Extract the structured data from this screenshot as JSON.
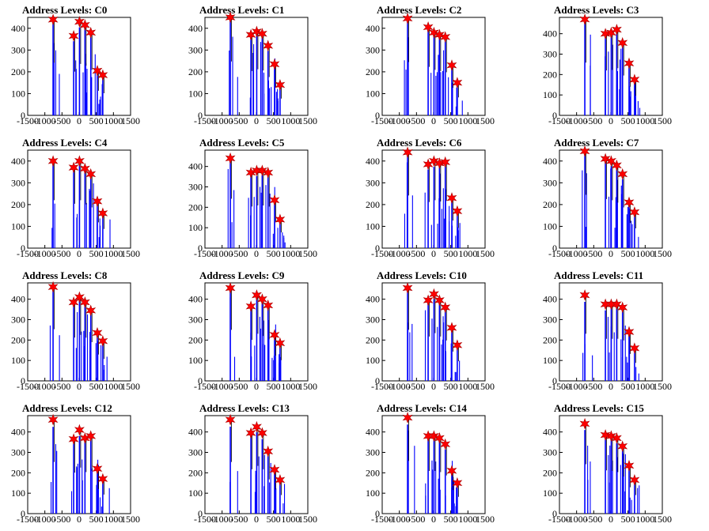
{
  "chart_data": [
    {
      "type": "bar",
      "title": "Address Levels: C0",
      "xlim": [
        -1500,
        1500
      ],
      "ylim": [
        0,
        450
      ],
      "x_ticks": [
        -1500,
        -1000,
        -500,
        0,
        500,
        1000,
        1500
      ],
      "y_ticks": [
        0,
        100,
        200,
        300,
        400
      ],
      "peaks": [
        {
          "x": -760,
          "y": 440
        },
        {
          "x": -160,
          "y": 365
        },
        {
          "x": 10,
          "y": 430
        },
        {
          "x": 170,
          "y": 415
        },
        {
          "x": 340,
          "y": 380
        },
        {
          "x": 530,
          "y": 205
        },
        {
          "x": 690,
          "y": 185
        }
      ]
    },
    {
      "type": "bar",
      "title": "Address Levels: C1",
      "xlim": [
        -1500,
        1500
      ],
      "ylim": [
        0,
        450
      ],
      "x_ticks": [
        -1500,
        -1000,
        -500,
        0,
        500,
        1000,
        1500
      ],
      "y_ticks": [
        0,
        100,
        200,
        300,
        400
      ],
      "peaks": [
        {
          "x": -760,
          "y": 450
        },
        {
          "x": -160,
          "y": 370
        },
        {
          "x": 10,
          "y": 385
        },
        {
          "x": 170,
          "y": 375
        },
        {
          "x": 340,
          "y": 320
        },
        {
          "x": 530,
          "y": 235
        },
        {
          "x": 690,
          "y": 140
        }
      ]
    },
    {
      "type": "bar",
      "title": "Address Levels: C2",
      "xlim": [
        -1500,
        1500
      ],
      "ylim": [
        0,
        450
      ],
      "x_ticks": [
        -1500,
        -1000,
        -500,
        0,
        500,
        1000,
        1500
      ],
      "y_ticks": [
        0,
        100,
        200,
        300,
        400
      ],
      "peaks": [
        {
          "x": -760,
          "y": 445
        },
        {
          "x": -160,
          "y": 405
        },
        {
          "x": 10,
          "y": 380
        },
        {
          "x": 170,
          "y": 370
        },
        {
          "x": 340,
          "y": 360
        },
        {
          "x": 530,
          "y": 230
        },
        {
          "x": 690,
          "y": 150
        }
      ]
    },
    {
      "type": "bar",
      "title": "Address Levels: C3",
      "xlim": [
        -1500,
        1500
      ],
      "ylim": [
        0,
        480
      ],
      "x_ticks": [
        -1500,
        -1000,
        -500,
        0,
        500,
        1000,
        1500
      ],
      "y_ticks": [
        0,
        100,
        200,
        300,
        400
      ],
      "peaks": [
        {
          "x": -760,
          "y": 470
        },
        {
          "x": -160,
          "y": 400
        },
        {
          "x": 10,
          "y": 405
        },
        {
          "x": 170,
          "y": 420
        },
        {
          "x": 340,
          "y": 355
        },
        {
          "x": 530,
          "y": 255
        },
        {
          "x": 690,
          "y": 175
        }
      ]
    },
    {
      "type": "bar",
      "title": "Address Levels: C4",
      "xlim": [
        -1500,
        1500
      ],
      "ylim": [
        0,
        450
      ],
      "x_ticks": [
        -1500,
        -1000,
        -500,
        0,
        500,
        1000,
        1500
      ],
      "y_ticks": [
        0,
        100,
        200,
        300,
        400
      ],
      "peaks": [
        {
          "x": -760,
          "y": 400
        },
        {
          "x": -160,
          "y": 370
        },
        {
          "x": 10,
          "y": 400
        },
        {
          "x": 170,
          "y": 365
        },
        {
          "x": 340,
          "y": 340
        },
        {
          "x": 530,
          "y": 215
        },
        {
          "x": 690,
          "y": 160
        }
      ]
    },
    {
      "type": "bar",
      "title": "Address Levels: C5",
      "xlim": [
        -1500,
        1500
      ],
      "ylim": [
        0,
        480
      ],
      "x_ticks": [
        -1500,
        -1000,
        -500,
        0,
        500,
        1000,
        1500
      ],
      "y_ticks": [
        0,
        100,
        200,
        300,
        400
      ],
      "peaks": [
        {
          "x": -760,
          "y": 440
        },
        {
          "x": -160,
          "y": 370
        },
        {
          "x": 10,
          "y": 380
        },
        {
          "x": 170,
          "y": 380
        },
        {
          "x": 340,
          "y": 370
        },
        {
          "x": 530,
          "y": 235
        },
        {
          "x": 690,
          "y": 140
        }
      ]
    },
    {
      "type": "bar",
      "title": "Address Levels: C6",
      "xlim": [
        -1500,
        1500
      ],
      "ylim": [
        0,
        450
      ],
      "x_ticks": [
        -1500,
        -1000,
        -500,
        0,
        500,
        1000,
        1500
      ],
      "y_ticks": [
        0,
        100,
        200,
        300,
        400
      ],
      "peaks": [
        {
          "x": -760,
          "y": 440
        },
        {
          "x": -160,
          "y": 385
        },
        {
          "x": 10,
          "y": 400
        },
        {
          "x": 170,
          "y": 390
        },
        {
          "x": 340,
          "y": 395
        },
        {
          "x": 530,
          "y": 230
        },
        {
          "x": 690,
          "y": 170
        }
      ]
    },
    {
      "type": "bar",
      "title": "Address Levels: C7",
      "xlim": [
        -1500,
        1500
      ],
      "ylim": [
        0,
        450
      ],
      "x_ticks": [
        -1500,
        -1000,
        -500,
        0,
        500,
        1000,
        1500
      ],
      "y_ticks": [
        0,
        100,
        200,
        300,
        400
      ],
      "peaks": [
        {
          "x": -760,
          "y": 445
        },
        {
          "x": -160,
          "y": 410
        },
        {
          "x": 10,
          "y": 400
        },
        {
          "x": 170,
          "y": 380
        },
        {
          "x": 340,
          "y": 340
        },
        {
          "x": 530,
          "y": 210
        },
        {
          "x": 690,
          "y": 165
        }
      ]
    },
    {
      "type": "bar",
      "title": "Address Levels: C8",
      "xlim": [
        -1500,
        1500
      ],
      "ylim": [
        0,
        480
      ],
      "x_ticks": [
        -1500,
        -1000,
        -500,
        0,
        500,
        1000,
        1500
      ],
      "y_ticks": [
        0,
        100,
        200,
        300,
        400
      ],
      "peaks": [
        {
          "x": -760,
          "y": 460
        },
        {
          "x": -160,
          "y": 385
        },
        {
          "x": 10,
          "y": 410
        },
        {
          "x": 170,
          "y": 385
        },
        {
          "x": 340,
          "y": 345
        },
        {
          "x": 530,
          "y": 235
        },
        {
          "x": 690,
          "y": 195
        }
      ]
    },
    {
      "type": "bar",
      "title": "Address Levels: C9",
      "xlim": [
        -1500,
        1500
      ],
      "ylim": [
        0,
        480
      ],
      "x_ticks": [
        -1500,
        -1000,
        -500,
        0,
        500,
        1000,
        1500
      ],
      "y_ticks": [
        0,
        100,
        200,
        300,
        400
      ],
      "peaks": [
        {
          "x": -760,
          "y": 455
        },
        {
          "x": -160,
          "y": 365
        },
        {
          "x": 10,
          "y": 420
        },
        {
          "x": 170,
          "y": 400
        },
        {
          "x": 340,
          "y": 370
        },
        {
          "x": 530,
          "y": 225
        },
        {
          "x": 690,
          "y": 185
        }
      ]
    },
    {
      "type": "bar",
      "title": "Address Levels: C10",
      "xlim": [
        -1500,
        1500
      ],
      "ylim": [
        0,
        480
      ],
      "x_ticks": [
        -1500,
        -1000,
        -500,
        0,
        500,
        1000,
        1500
      ],
      "y_ticks": [
        0,
        100,
        200,
        300,
        400
      ],
      "peaks": [
        {
          "x": -760,
          "y": 455
        },
        {
          "x": -160,
          "y": 395
        },
        {
          "x": 10,
          "y": 425
        },
        {
          "x": 170,
          "y": 395
        },
        {
          "x": 340,
          "y": 360
        },
        {
          "x": 530,
          "y": 260
        },
        {
          "x": 690,
          "y": 175
        }
      ]
    },
    {
      "type": "bar",
      "title": "Address Levels: C11",
      "xlim": [
        -1500,
        1500
      ],
      "ylim": [
        0,
        480
      ],
      "x_ticks": [
        -1500,
        -1000,
        -500,
        0,
        500,
        1000,
        1500
      ],
      "y_ticks": [
        0,
        100,
        200,
        300,
        400
      ],
      "peaks": [
        {
          "x": -760,
          "y": 420
        },
        {
          "x": -160,
          "y": 375
        },
        {
          "x": 10,
          "y": 375
        },
        {
          "x": 170,
          "y": 375
        },
        {
          "x": 340,
          "y": 360
        },
        {
          "x": 530,
          "y": 240
        },
        {
          "x": 690,
          "y": 160
        }
      ]
    },
    {
      "type": "bar",
      "title": "Address Levels: C12",
      "xlim": [
        -1500,
        1500
      ],
      "ylim": [
        0,
        480
      ],
      "x_ticks": [
        -1500,
        -1000,
        -500,
        0,
        500,
        1000,
        1500
      ],
      "y_ticks": [
        0,
        100,
        200,
        300,
        400
      ],
      "peaks": [
        {
          "x": -760,
          "y": 460
        },
        {
          "x": -160,
          "y": 365
        },
        {
          "x": 10,
          "y": 410
        },
        {
          "x": 170,
          "y": 370
        },
        {
          "x": 340,
          "y": 380
        },
        {
          "x": 530,
          "y": 220
        },
        {
          "x": 690,
          "y": 170
        }
      ]
    },
    {
      "type": "bar",
      "title": "Address Levels: C13",
      "xlim": [
        -1500,
        1500
      ],
      "ylim": [
        0,
        480
      ],
      "x_ticks": [
        -1500,
        -1000,
        -500,
        0,
        500,
        1000,
        1500
      ],
      "y_ticks": [
        0,
        100,
        200,
        300,
        400
      ],
      "peaks": [
        {
          "x": -760,
          "y": 460
        },
        {
          "x": -160,
          "y": 395
        },
        {
          "x": 10,
          "y": 425
        },
        {
          "x": 170,
          "y": 395
        },
        {
          "x": 340,
          "y": 305
        },
        {
          "x": 530,
          "y": 215
        },
        {
          "x": 690,
          "y": 165
        }
      ]
    },
    {
      "type": "bar",
      "title": "Address Levels: C14",
      "xlim": [
        -1500,
        1500
      ],
      "ylim": [
        0,
        480
      ],
      "x_ticks": [
        -1500,
        -1000,
        -500,
        0,
        500,
        1000,
        1500
      ],
      "y_ticks": [
        0,
        100,
        200,
        300,
        400
      ],
      "peaks": [
        {
          "x": -760,
          "y": 470
        },
        {
          "x": -160,
          "y": 380
        },
        {
          "x": 10,
          "y": 380
        },
        {
          "x": 170,
          "y": 370
        },
        {
          "x": 340,
          "y": 340
        },
        {
          "x": 530,
          "y": 210
        },
        {
          "x": 690,
          "y": 150
        }
      ]
    },
    {
      "type": "bar",
      "title": "Address Levels: C15",
      "xlim": [
        -1500,
        1500
      ],
      "ylim": [
        0,
        480
      ],
      "x_ticks": [
        -1500,
        -1000,
        -500,
        0,
        500,
        1000,
        1500
      ],
      "y_ticks": [
        0,
        100,
        200,
        300,
        400
      ],
      "peaks": [
        {
          "x": -760,
          "y": 440
        },
        {
          "x": -160,
          "y": 385
        },
        {
          "x": 10,
          "y": 380
        },
        {
          "x": 170,
          "y": 370
        },
        {
          "x": 340,
          "y": 330
        },
        {
          "x": 530,
          "y": 235
        },
        {
          "x": 690,
          "y": 165
        }
      ]
    }
  ],
  "colors": {
    "histogram": "#0000ff",
    "marker": "#ff0000",
    "axis": "#000000",
    "background": "#ffffff"
  }
}
